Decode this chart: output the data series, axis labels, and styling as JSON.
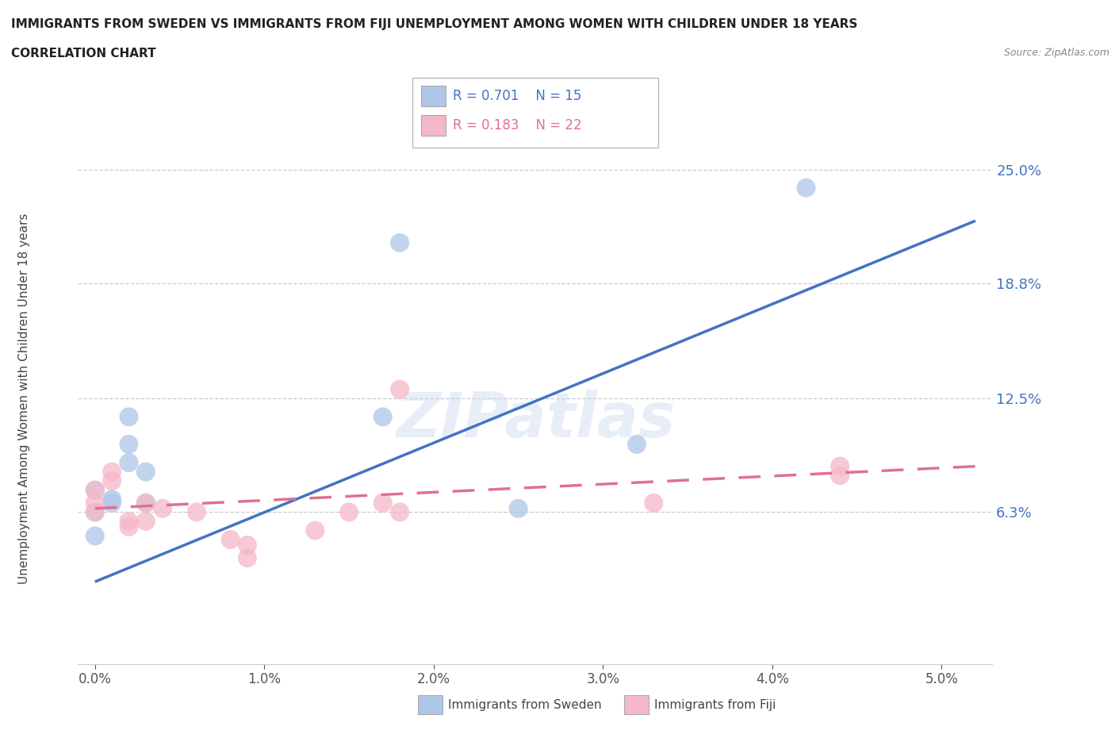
{
  "title": "IMMIGRANTS FROM SWEDEN VS IMMIGRANTS FROM FIJI UNEMPLOYMENT AMONG WOMEN WITH CHILDREN UNDER 18 YEARS",
  "subtitle": "CORRELATION CHART",
  "source": "Source: ZipAtlas.com",
  "ylabel_label": "Unemployment Among Women with Children Under 18 years",
  "x_tick_labels": [
    "0.0%",
    "1.0%",
    "2.0%",
    "3.0%",
    "4.0%",
    "5.0%"
  ],
  "x_tick_values": [
    0.0,
    0.01,
    0.02,
    0.03,
    0.04,
    0.05
  ],
  "y_tick_labels": [
    "25.0%",
    "18.8%",
    "12.5%",
    "6.3%"
  ],
  "y_tick_values": [
    0.25,
    0.188,
    0.125,
    0.063
  ],
  "xlim": [
    -0.001,
    0.053
  ],
  "ylim": [
    -0.02,
    0.27
  ],
  "background_color": "#ffffff",
  "grid_color": "#cccccc",
  "watermark": "ZIPatlas",
  "sweden_color": "#aec6e8",
  "fiji_color": "#f4b8c8",
  "sweden_line_color": "#4472c4",
  "fiji_line_color": "#e07090",
  "sweden_label": "Immigrants from Sweden",
  "fiji_label": "Immigrants from Fiji",
  "sweden_R": "0.701",
  "sweden_N": "15",
  "fiji_R": "0.183",
  "fiji_N": "22",
  "sweden_points_x": [
    0.0,
    0.0,
    0.001,
    0.001,
    0.002,
    0.002,
    0.002,
    0.003,
    0.003,
    0.017,
    0.018,
    0.025,
    0.032,
    0.042,
    0.0
  ],
  "sweden_points_y": [
    0.063,
    0.05,
    0.068,
    0.07,
    0.09,
    0.1,
    0.115,
    0.068,
    0.085,
    0.115,
    0.21,
    0.065,
    0.1,
    0.24,
    0.075
  ],
  "fiji_points_x": [
    0.0,
    0.0,
    0.0,
    0.001,
    0.001,
    0.002,
    0.002,
    0.003,
    0.003,
    0.004,
    0.006,
    0.008,
    0.009,
    0.009,
    0.013,
    0.015,
    0.017,
    0.018,
    0.018,
    0.033,
    0.044,
    0.044
  ],
  "fiji_points_y": [
    0.075,
    0.068,
    0.063,
    0.085,
    0.08,
    0.058,
    0.055,
    0.068,
    0.058,
    0.065,
    0.063,
    0.048,
    0.038,
    0.045,
    0.053,
    0.063,
    0.068,
    0.063,
    0.13,
    0.068,
    0.083,
    0.088
  ],
  "sweden_trendline_x": [
    0.0,
    0.052
  ],
  "sweden_trendline_y": [
    0.025,
    0.222
  ],
  "fiji_trendline_x": [
    0.0,
    0.052
  ],
  "fiji_trendline_y": [
    0.065,
    0.088
  ]
}
